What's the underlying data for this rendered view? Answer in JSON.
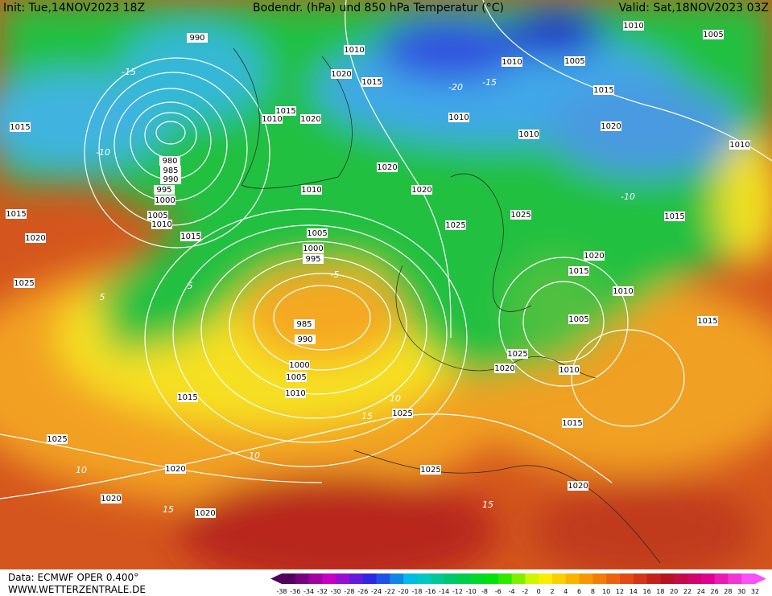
{
  "header": {
    "init": "Init: Tue,14NOV2023 18Z",
    "title": "Bodendr. (hPa) und 850 hPa Temperatur (°C)",
    "valid": "Valid: Sat,18NOV2023 03Z"
  },
  "footer": {
    "source": "Data: ECMWF OPER 0.400°",
    "site": "WWW.WETTERZENTRALE.DE"
  },
  "colorbar": {
    "ticks": [
      -38,
      -36,
      -34,
      -32,
      -30,
      -28,
      -26,
      -24,
      -22,
      -20,
      -18,
      -16,
      -14,
      -12,
      -10,
      -8,
      -6,
      -4,
      -2,
      0,
      2,
      4,
      6,
      8,
      10,
      12,
      14,
      16,
      18,
      20,
      22,
      24,
      26,
      28,
      30,
      32
    ]
  },
  "isobar_labels": [
    990,
    1010,
    1010,
    1005,
    1010,
    1005,
    1020,
    1015,
    1015,
    1015,
    1015,
    1010,
    1020,
    1010,
    1010,
    1020,
    1010,
    980,
    985,
    990,
    995,
    1000,
    1005,
    1010,
    1015,
    1015,
    1020,
    1010,
    1020,
    1025,
    1025,
    1015,
    1020,
    1025,
    1005,
    1000,
    995,
    1020,
    1015,
    1010,
    985,
    990,
    1005,
    1015,
    1025,
    1020,
    1010,
    1000,
    1005,
    1010,
    1015,
    1025,
    1015,
    1025,
    1020,
    1025,
    1020,
    1020,
    1020
  ],
  "temperature_labels": [
    -15,
    -10,
    -20,
    -15,
    -10,
    -5,
    5,
    5,
    10,
    15,
    10,
    15,
    15,
    10
  ]
}
